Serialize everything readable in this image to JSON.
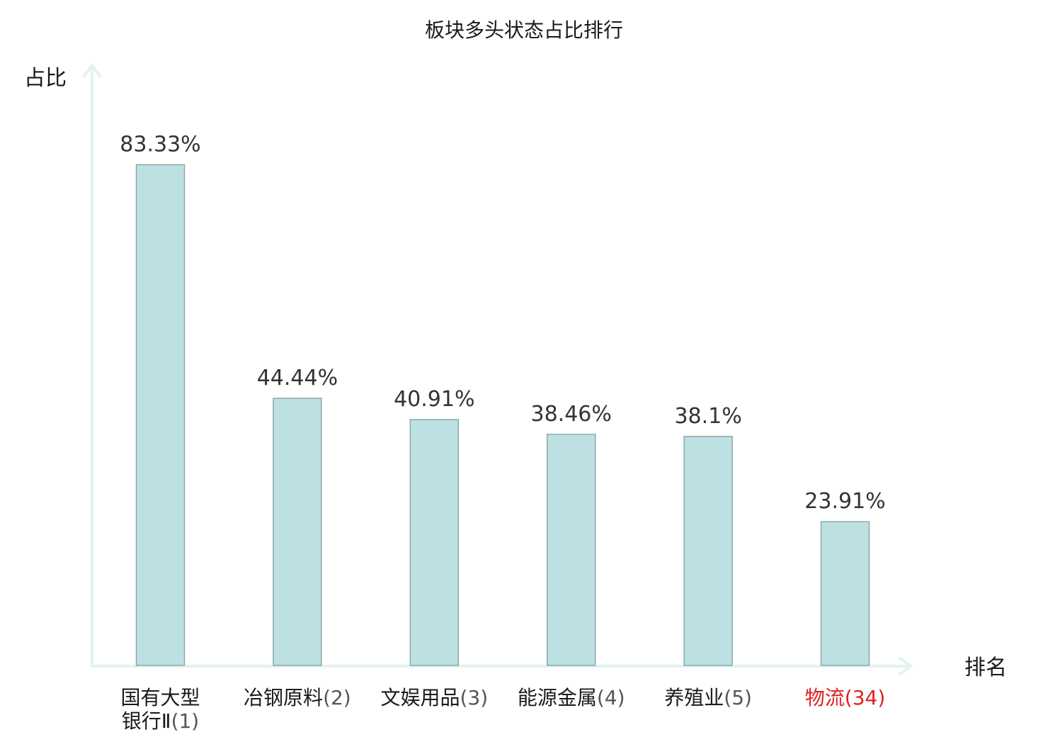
{
  "chart_data": {
    "type": "bar",
    "title": "板块多头状态占比排行",
    "xlabel": "排名",
    "ylabel": "占比",
    "ylim": [
      0,
      100
    ],
    "grid": false,
    "categories": [
      {
        "lines": [
          {
            "name": "国有大型",
            "rank": ""
          },
          {
            "name": "银行Ⅱ",
            "rank": "(1)"
          }
        ],
        "highlight": false
      },
      {
        "lines": [
          {
            "name": "冶钢原料",
            "rank": "(2)"
          }
        ],
        "highlight": false
      },
      {
        "lines": [
          {
            "name": "文娱用品",
            "rank": "(3)"
          }
        ],
        "highlight": false
      },
      {
        "lines": [
          {
            "name": "能源金属",
            "rank": "(4)"
          }
        ],
        "highlight": false
      },
      {
        "lines": [
          {
            "name": "养殖业",
            "rank": "(5)"
          }
        ],
        "highlight": false
      },
      {
        "lines": [
          {
            "name": "物流",
            "rank": "(34)"
          }
        ],
        "highlight": true
      }
    ],
    "values": [
      83.33,
      44.44,
      40.91,
      38.46,
      38.1,
      23.91
    ],
    "value_labels": [
      "83.33%",
      "44.44%",
      "40.91%",
      "38.46%",
      "38.1%",
      "23.91%"
    ]
  },
  "colors": {
    "bar_fill": "#bde0e3",
    "bar_stroke": "#8aa9ab",
    "axis": "#e2f3f1",
    "highlight_text": "#e02020"
  }
}
